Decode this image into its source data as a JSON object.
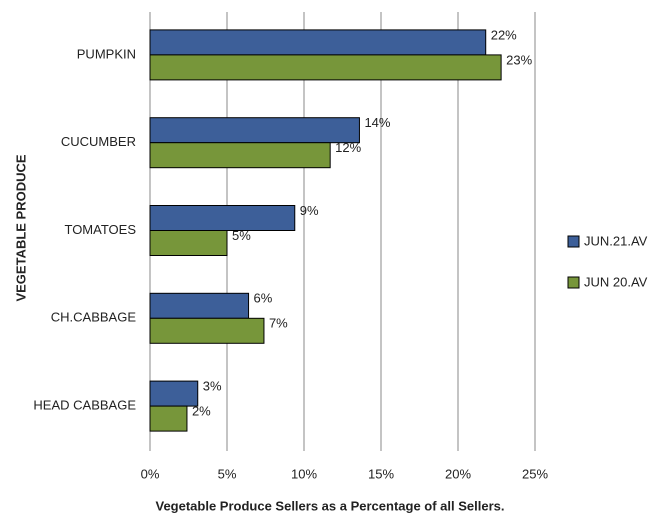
{
  "chart_data": {
    "type": "hbar",
    "x_label": "Vegetable Produce Sellers as a Percentage of all Sellers.",
    "y_label": "VEGETABLE PRODUCE",
    "categories": [
      "PUMPKIN",
      "CUCUMBER",
      "TOMATOES",
      "CH.CABBAGE",
      "HEAD CABBAGE"
    ],
    "series": [
      {
        "name": "JUN.21.AV",
        "color": "#3d5f99",
        "values": [
          21.8,
          13.6,
          9.4,
          6.4,
          3.1
        ],
        "value_labels": [
          "22%",
          "14%",
          "9%",
          "6%",
          "3%"
        ]
      },
      {
        "name": "JUN 20.AV",
        "color": "#77963a",
        "values": [
          22.8,
          11.7,
          5.0,
          7.4,
          2.4
        ],
        "value_labels": [
          "23%",
          "12%",
          "5%",
          "7%",
          "2%"
        ]
      }
    ],
    "xlim": [
      0,
      25
    ],
    "xticks": [
      {
        "value": 0,
        "label": "0%"
      },
      {
        "value": 5,
        "label": "5%"
      },
      {
        "value": 10,
        "label": "10%"
      },
      {
        "value": 15,
        "label": "15%"
      },
      {
        "value": 20,
        "label": "20%"
      },
      {
        "value": 25,
        "label": "25%"
      }
    ],
    "grid": true,
    "legend": "right"
  }
}
